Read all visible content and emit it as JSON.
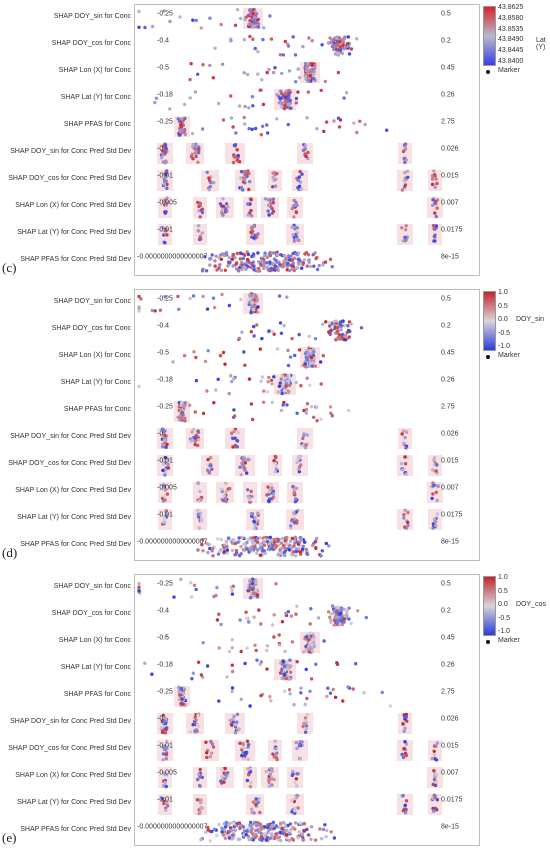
{
  "chart_data": [
    {
      "type": "scatter",
      "panel_label": "(c)",
      "color_variable": "Lat (Y)",
      "color_ticks": [
        "43.8625",
        "43.8580",
        "43.8535",
        "43.8490",
        "43.8445",
        "43.8400"
      ],
      "colors": {
        "high": "#d6232b",
        "mid": "#b9b9cf",
        "low": "#3a3fe0"
      },
      "legend_marker": "Marker",
      "rows": [
        {
          "label": "SHAP DOY_sin for Conc",
          "left_tick": "-0.25",
          "right_tick": "0.5"
        },
        {
          "label": "SHAP DOY_cos for Conc",
          "left_tick": "-0.4",
          "right_tick": "0.2"
        },
        {
          "label": "SHAP Lon (X) for Conc",
          "left_tick": "-0.5",
          "right_tick": "0.45"
        },
        {
          "label": "SHAP Lat (Y) for Conc",
          "left_tick": "-0.18",
          "right_tick": "0.26"
        },
        {
          "label": "SHAP PFAS for Conc",
          "left_tick": "-0.25",
          "right_tick": "2.75"
        },
        {
          "label": "SHAP DOY_sin for Conc Pred Std Dev",
          "left_tick": "-0",
          "right_tick": "0.026"
        },
        {
          "label": "SHAP DOY_cos for Conc Pred Std Dev",
          "left_tick": "-0.01",
          "right_tick": "0.015"
        },
        {
          "label": "SHAP Lon (X) for Conc Pred Std Dev",
          "left_tick": "-0.005",
          "right_tick": "0.007"
        },
        {
          "label": "SHAP Lat (Y) for Conc Pred Std Dev",
          "left_tick": "-0.01",
          "right_tick": "0.0175"
        },
        {
          "label": "SHAP PFAS for Conc Pred Std Dev",
          "left_tick": "-0.0000000000000007",
          "right_tick": "8e-15"
        }
      ]
    },
    {
      "type": "scatter",
      "panel_label": "(d)",
      "color_variable": "DOY_sin",
      "color_ticks": [
        "1.0",
        "0.5",
        "0.0",
        "-0.5",
        "-1.0"
      ],
      "colors": {
        "high": "#c0272d",
        "mid": "#d9d4dc",
        "low": "#2a3dd8"
      },
      "legend_marker": "Marker",
      "rows": [
        {
          "label": "SHAP DOY_sin for Conc",
          "left_tick": "-0.25",
          "right_tick": "0.5"
        },
        {
          "label": "SHAP DOY_cos for Conc",
          "left_tick": "-0.4",
          "right_tick": "0.2"
        },
        {
          "label": "SHAP Lon (X) for Conc",
          "left_tick": "-0.5",
          "right_tick": "0.45"
        },
        {
          "label": "SHAP Lat (Y) for Conc",
          "left_tick": "-0.18",
          "right_tick": "0.26"
        },
        {
          "label": "SHAP PFAS for Conc",
          "left_tick": "-0.25",
          "right_tick": "2.75"
        },
        {
          "label": "SHAP DOY_sin for Conc Pred Std Dev",
          "left_tick": "-0",
          "right_tick": "0.026"
        },
        {
          "label": "SHAP DOY_cos for Conc Pred Std Dev",
          "left_tick": "-0.01",
          "right_tick": "0.015"
        },
        {
          "label": "SHAP Lon (X) for Conc Pred Std Dev",
          "left_tick": "-0.005",
          "right_tick": "0.007"
        },
        {
          "label": "SHAP Lat (Y) for Conc Pred Std Dev",
          "left_tick": "-0.01",
          "right_tick": "0.0175"
        },
        {
          "label": "SHAP PFAS for Conc Pred Std Dev",
          "left_tick": "-0.0000000000000007",
          "right_tick": "8e-15"
        }
      ]
    },
    {
      "type": "scatter",
      "panel_label": "(e)",
      "color_variable": "DOY_cos",
      "color_ticks": [
        "1.0",
        "0.5",
        "0.0",
        "-0.5",
        "-1.0"
      ],
      "colors": {
        "high": "#c0272d",
        "mid": "#d9d4dc",
        "low": "#2a3dd8"
      },
      "legend_marker": "Marker",
      "rows": [
        {
          "label": "SHAP DOY_sin for Conc",
          "left_tick": "-0.25",
          "right_tick": "0.5"
        },
        {
          "label": "SHAP DOY_cos for Conc",
          "left_tick": "-0.4",
          "right_tick": "0.2"
        },
        {
          "label": "SHAP Lon (X) for Conc",
          "left_tick": "-0.5",
          "right_tick": "0.45"
        },
        {
          "label": "SHAP Lat (Y) for Conc",
          "left_tick": "-0.18",
          "right_tick": "0.26"
        },
        {
          "label": "SHAP PFAS for Conc",
          "left_tick": "-0.25",
          "right_tick": "2.75"
        },
        {
          "label": "SHAP DOY_sin for Conc Pred Std Dev",
          "left_tick": "-0",
          "right_tick": "0.026"
        },
        {
          "label": "SHAP DOY_cos for Conc Pred Std Dev",
          "left_tick": "-0.01",
          "right_tick": "0.015"
        },
        {
          "label": "SHAP Lon (X) for Conc Pred Std Dev",
          "left_tick": "-0.005",
          "right_tick": "0.007"
        },
        {
          "label": "SHAP Lat (Y) for Conc Pred Std Dev",
          "left_tick": "-0.01",
          "right_tick": "0.0175"
        },
        {
          "label": "SHAP PFAS for Conc Pred Std Dev",
          "left_tick": "-0.0000000000000007",
          "right_tick": "8e-15"
        }
      ]
    }
  ]
}
